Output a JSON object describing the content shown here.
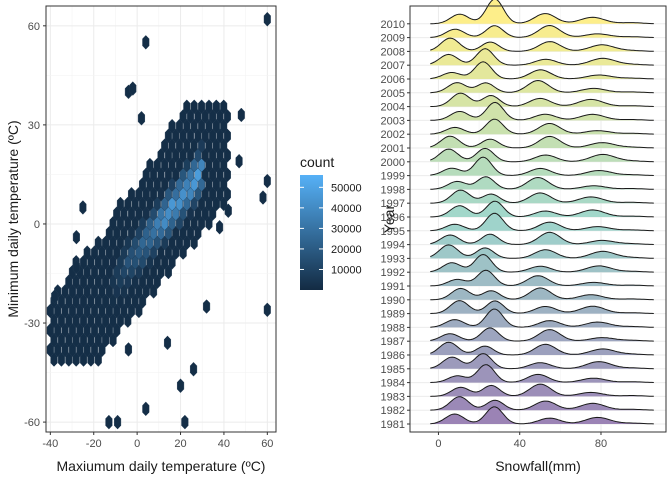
{
  "chart_data": [
    {
      "type": "heatmap",
      "subtype": "hexbin",
      "xlabel": "Maxiumum daily temperature (ºC)",
      "ylabel": "Minimum daily temperature (ºC)",
      "xlim": [
        -42,
        64
      ],
      "ylim": [
        -63,
        66
      ],
      "x_ticks": [
        -40,
        -20,
        0,
        20,
        40,
        60
      ],
      "y_ticks": [
        -60,
        -30,
        0,
        30,
        60
      ],
      "grid": true,
      "legend": {
        "title": "count",
        "placement": "right",
        "ticks": [
          10000,
          20000,
          30000,
          40000,
          50000
        ],
        "tick_labels": [
          "10000",
          "20000",
          "30000",
          "40000",
          "50000"
        ],
        "range": [
          0,
          56000
        ],
        "low_color": "#132b43",
        "high_color": "#56b1f7"
      },
      "bin_width": [
        3.4,
        3.4
      ],
      "dense_band": {
        "slope": 0.82,
        "intercept": -8.6,
        "x_range": [
          -14,
          30
        ],
        "peak_count": 56000
      }
    },
    {
      "type": "area",
      "subtype": "ridgeline",
      "xlabel": "Snowfall(mm)",
      "ylabel": "Year",
      "xlim": [
        -14,
        112
      ],
      "x_ticks": [
        0,
        40,
        80
      ],
      "categories": [
        "1981",
        "1982",
        "1983",
        "1984",
        "1985",
        "1986",
        "1987",
        "1988",
        "1989",
        "1990",
        "1991",
        "1992",
        "1993",
        "1994",
        "1995",
        "1996",
        "1997",
        "1998",
        "1999",
        "2000",
        "2001",
        "2002",
        "2003",
        "2004",
        "2005",
        "2006",
        "2007",
        "2008",
        "2009",
        "2010"
      ],
      "fill_colors": {
        "low": "#9b83b5",
        "mid": "#9fd6cc",
        "high": "#fdee8a"
      },
      "density_peaks": [
        {
          "x": 8,
          "relative_height": 0.55
        },
        {
          "x": 25,
          "relative_height": 0.75
        },
        {
          "x": 52,
          "relative_height": 0.5
        },
        {
          "x": 78,
          "relative_height": 0.3
        }
      ],
      "grid": true
    }
  ]
}
